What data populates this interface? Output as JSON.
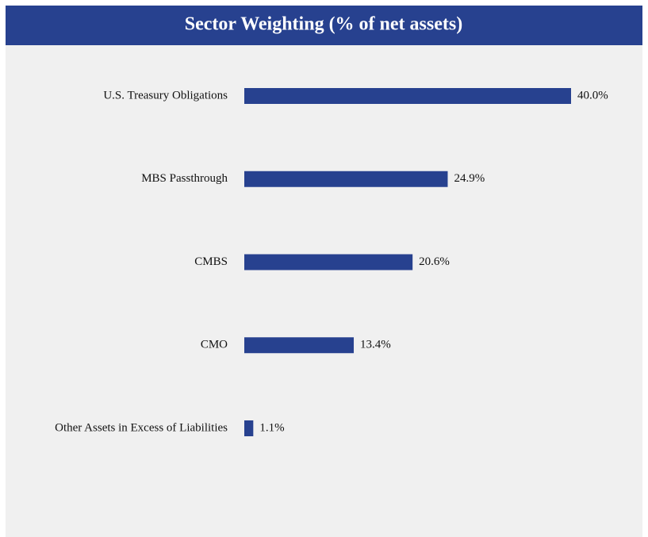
{
  "chart_data": {
    "type": "barh",
    "title": "Sector Weighting (% of net assets)",
    "categories": [
      "U.S. Treasury Obligations",
      "MBS Passthrough",
      "CMBS",
      "CMO",
      "Other Assets in Excess of Liabilities"
    ],
    "values": [
      40.0,
      24.9,
      20.6,
      13.4,
      1.1
    ],
    "value_labels": [
      "40.0%",
      "24.9%",
      "20.6%",
      "13.4%",
      "1.1%"
    ],
    "color": "#27418f",
    "xlim": [
      0,
      40
    ]
  }
}
